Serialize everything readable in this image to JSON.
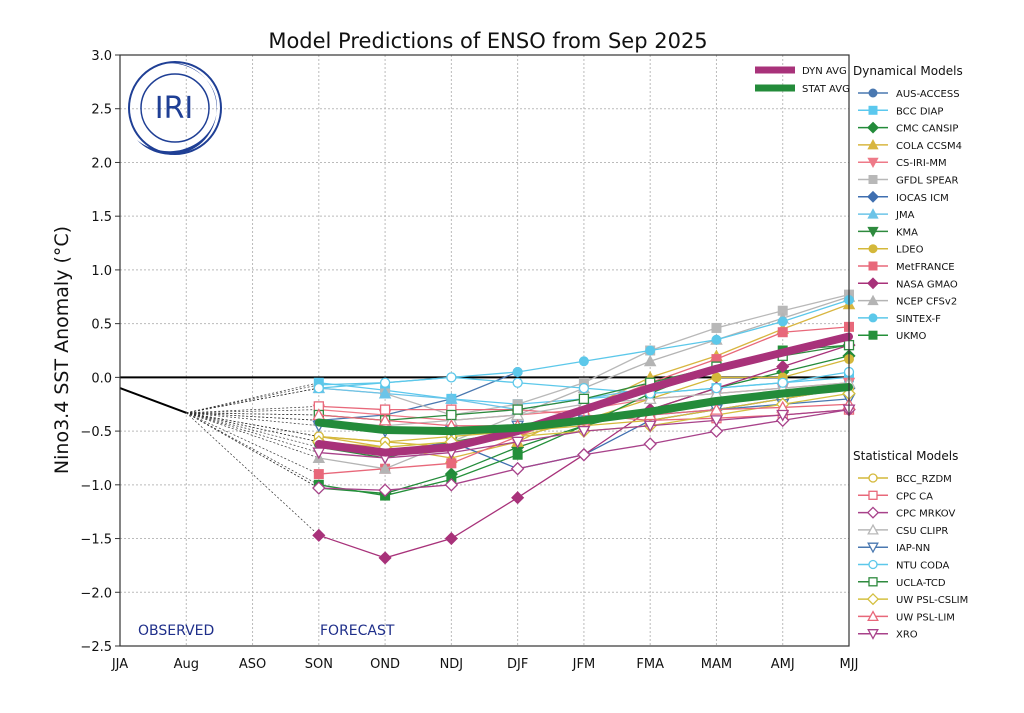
{
  "chart_data": {
    "type": "line",
    "title": "Model Predictions of ENSO from Sep 2025",
    "xlabel": "",
    "ylabel": "Nino3.4 SST Anomaly (°C)",
    "ylim": [
      -2.5,
      3.0
    ],
    "yticks": [
      "3.0",
      "2.5",
      "2.0",
      "1.5",
      "1.0",
      "0.5",
      "0.0",
      "−0.5",
      "−1.0",
      "−1.5",
      "−2.0",
      "−2.5"
    ],
    "ytick_values": [
      3.0,
      2.5,
      2.0,
      1.5,
      1.0,
      0.5,
      0.0,
      -0.5,
      -1.0,
      -1.5,
      -2.0,
      -2.5
    ],
    "categories": [
      "JJA",
      "Aug",
      "ASO",
      "SON",
      "OND",
      "NDJ",
      "DJF",
      "JFM",
      "FMA",
      "MAM",
      "AMJ",
      "MJJ"
    ],
    "grid": true,
    "annotations": {
      "observed": "OBSERVED",
      "forecast": "FORECAST",
      "logo": "IRI"
    },
    "observed": {
      "categories": [
        "JJA",
        "Aug"
      ],
      "values": [
        -0.1,
        -0.33
      ]
    },
    "forecast_start_index": 3,
    "averages": [
      {
        "name": "DYN AVG",
        "color": "#a8327a",
        "values": [
          -0.62,
          -0.7,
          -0.65,
          -0.5,
          -0.3,
          -0.1,
          0.08,
          0.23,
          0.38
        ]
      },
      {
        "name": "STAT AVG",
        "color": "#238b3a",
        "values": [
          -0.42,
          -0.49,
          -0.5,
          -0.47,
          -0.4,
          -0.32,
          -0.22,
          -0.15,
          -0.09
        ]
      }
    ],
    "dynamical_title": "Dynamical Models",
    "statistical_title": "Statistical Models",
    "dynamical": [
      {
        "name": "AUS-ACCESS",
        "color": "#4a78b0",
        "marker": "circle",
        "values": [
          -0.4,
          -0.35,
          -0.2,
          0.05
        ]
      },
      {
        "name": "BCC DIAP",
        "color": "#5bc8ee",
        "marker": "square",
        "values": [
          -0.05,
          -0.12,
          -0.2,
          -0.25,
          -0.2,
          -0.15,
          -0.1,
          -0.05,
          0.0
        ]
      },
      {
        "name": "CMC CANSIP",
        "color": "#238b3a",
        "marker": "diamond",
        "values": [
          -1.03,
          -1.08,
          -0.9,
          -0.65,
          -0.45,
          -0.3,
          -0.1,
          0.05,
          0.2
        ]
      },
      {
        "name": "COLA CCSM4",
        "color": "#d8b640",
        "marker": "triangle",
        "values": [
          -0.55,
          -0.65,
          -0.75,
          -0.6,
          -0.3,
          0.0,
          0.2,
          0.45,
          0.68
        ]
      },
      {
        "name": "CS-IRI-MM",
        "color": "#ee7a88",
        "marker": "triangle-down",
        "values": [
          -0.3,
          -0.35,
          -0.4,
          -0.35,
          -0.3,
          -0.2,
          -0.15,
          -0.1,
          -0.05
        ]
      },
      {
        "name": "GFDL SPEAR",
        "color": "#b8b8b8",
        "marker": "square",
        "values": [
          -0.1,
          -0.15,
          -0.35,
          -0.25,
          -0.05,
          0.25,
          0.46,
          0.62,
          0.77
        ]
      },
      {
        "name": "IOCAS ICM",
        "color": "#3f6fb0",
        "marker": "diamond",
        "values": [
          -0.6,
          -0.7,
          -0.6,
          -0.85,
          -0.72,
          -0.4,
          -0.3,
          -0.2,
          -0.1
        ]
      },
      {
        "name": "JMA",
        "color": "#6cc4e8",
        "marker": "triangle",
        "values": [
          -0.1,
          -0.15,
          -0.2,
          -0.3,
          -0.2,
          -0.1
        ]
      },
      {
        "name": "KMA",
        "color": "#2e8a3e",
        "marker": "triangle-down",
        "values": [
          -0.65,
          -0.75,
          -0.6,
          -0.5
        ]
      },
      {
        "name": "LDEO",
        "color": "#d4b83a",
        "marker": "circle",
        "values": [
          -0.55,
          -0.6,
          -0.65,
          -0.55,
          -0.4,
          -0.2,
          0.0,
          0.0,
          0.17
        ]
      },
      {
        "name": "MetFRANCE",
        "color": "#e8687a",
        "marker": "square",
        "values": [
          -0.9,
          -0.85,
          -0.8,
          -0.55,
          -0.3,
          -0.05,
          0.17,
          0.42,
          0.47
        ]
      },
      {
        "name": "NASA GMAO",
        "color": "#a8327a",
        "marker": "diamond",
        "values": [
          -1.47,
          -1.68,
          -1.5,
          -1.12,
          -0.72,
          -0.3,
          -0.1,
          0.1,
          0.3
        ]
      },
      {
        "name": "NCEP CFSv2",
        "color": "#b4b4b4",
        "marker": "triangle",
        "values": [
          -0.75,
          -0.85,
          -0.6,
          -0.35,
          -0.1,
          0.15,
          0.35,
          0.55,
          0.75
        ]
      },
      {
        "name": "SINTEX-F",
        "color": "#5cc8ea",
        "marker": "circle",
        "values": [
          -0.07,
          -0.05,
          0.0,
          0.05,
          0.15,
          0.25,
          0.35,
          0.52,
          0.72
        ]
      },
      {
        "name": "UKMO",
        "color": "#24903a",
        "marker": "square",
        "values": [
          -1.0,
          -1.1,
          -0.95,
          -0.72,
          -0.45,
          -0.15,
          0.1,
          0.25,
          0.3
        ]
      }
    ],
    "statistical": [
      {
        "name": "BCC_RZDM",
        "color": "#d4b83a",
        "marker": "circle",
        "values": [
          -0.55,
          -0.6,
          -0.55,
          -0.5,
          -0.45,
          -0.4,
          -0.3,
          -0.2,
          -0.1
        ]
      },
      {
        "name": "CPC CA",
        "color": "#e8687a",
        "marker": "square",
        "values": [
          -0.27,
          -0.3,
          -0.3,
          -0.3,
          -0.35,
          -0.4,
          -0.38,
          -0.35,
          -0.3
        ]
      },
      {
        "name": "CPC MRKOV",
        "color": "#a8428a",
        "marker": "diamond",
        "values": [
          -1.03,
          -1.05,
          -1.0,
          -0.85,
          -0.72,
          -0.62,
          -0.5,
          -0.4,
          -0.3
        ]
      },
      {
        "name": "CSU CLIPR",
        "color": "#b8b8b8",
        "marker": "triangle",
        "values": [
          -0.4,
          -0.45,
          -0.4,
          -0.35,
          -0.25,
          -0.2,
          -0.15,
          -0.1,
          -0.05
        ]
      },
      {
        "name": "IAP-NN",
        "color": "#4a78b0",
        "marker": "triangle-down",
        "values": [
          -0.45,
          -0.5,
          -0.5,
          -0.45,
          -0.4,
          -0.35,
          -0.3,
          -0.25,
          -0.2
        ]
      },
      {
        "name": "NTU CODA",
        "color": "#5cc8ea",
        "marker": "circle",
        "values": [
          -0.1,
          -0.05,
          0.0,
          -0.05,
          -0.1,
          -0.15,
          -0.1,
          -0.05,
          0.05
        ]
      },
      {
        "name": "UCLA-TCD",
        "color": "#2e8a3e",
        "marker": "square",
        "values": [
          -0.35,
          -0.4,
          -0.35,
          -0.3,
          -0.2,
          -0.05,
          0.1,
          0.2,
          0.3
        ]
      },
      {
        "name": "UW PSL-CSLIM",
        "color": "#d4c040",
        "marker": "diamond",
        "values": [
          -0.6,
          -0.65,
          -0.6,
          -0.55,
          -0.5,
          -0.45,
          -0.35,
          -0.25,
          -0.15
        ]
      },
      {
        "name": "UW PSL-LIM",
        "color": "#e8687a",
        "marker": "triangle",
        "values": [
          -0.35,
          -0.4,
          -0.45,
          -0.45,
          -0.4,
          -0.35,
          -0.3,
          -0.28,
          -0.25
        ]
      },
      {
        "name": "XRO",
        "color": "#a8428a",
        "marker": "triangle-down",
        "values": [
          -0.7,
          -0.75,
          -0.7,
          -0.6,
          -0.5,
          -0.45,
          -0.4,
          -0.35,
          -0.3
        ]
      }
    ]
  }
}
